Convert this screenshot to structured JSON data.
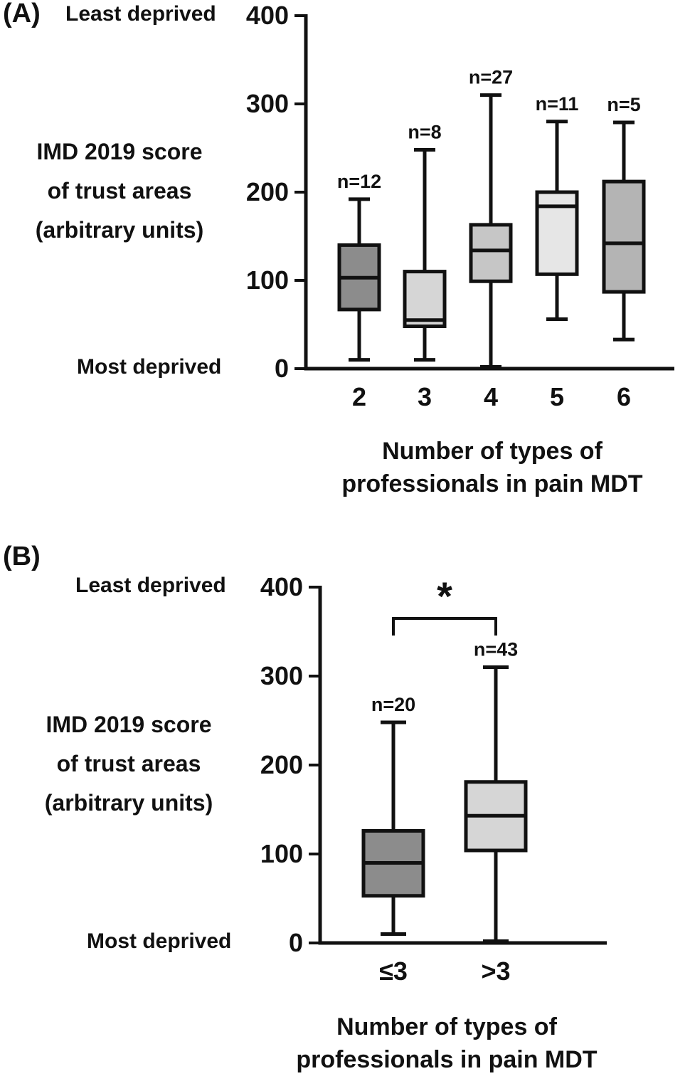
{
  "figure": {
    "background": "#ffffff",
    "text_color": "#111111",
    "axis_color": "#111111"
  },
  "chart_data": [
    {
      "type": "boxplot",
      "panel_label": "(A)",
      "least_label": "Least deprived",
      "most_label": "Most deprived",
      "ylabel": "IMD 2019 score of trust areas (arbitrary units)",
      "ylabel_lines": [
        "IMD 2019 score",
        "of trust areas",
        "(arbitrary units)"
      ],
      "xlabel": "Number of types of professionals in pain MDT",
      "xlabel_lines": [
        "Number of types of",
        "professionals in pain MDT"
      ],
      "ylim": [
        0,
        400
      ],
      "yticks": [
        0,
        100,
        200,
        300,
        400
      ],
      "categories": [
        "2",
        "3",
        "4",
        "5",
        "6"
      ],
      "boxes": [
        {
          "category": "2",
          "n": 12,
          "n_label": "n=12",
          "min": 10,
          "q1": 67,
          "median": 103,
          "q3": 140,
          "max": 192,
          "fill": "#8c8c8c"
        },
        {
          "category": "3",
          "n": 8,
          "n_label": "n=8",
          "min": 10,
          "q1": 48,
          "median": 55,
          "q3": 110,
          "max": 248,
          "fill": "#d6d6d6"
        },
        {
          "category": "4",
          "n": 27,
          "n_label": "n=27",
          "min": 2,
          "q1": 99,
          "median": 134,
          "q3": 163,
          "max": 310,
          "fill": "#c6c6c6"
        },
        {
          "category": "5",
          "n": 11,
          "n_label": "n=11",
          "min": 56,
          "q1": 107,
          "median": 184,
          "q3": 200,
          "max": 280,
          "fill": "#e6e6e6"
        },
        {
          "category": "6",
          "n": 5,
          "n_label": "n=5",
          "min": 33,
          "q1": 87,
          "median": 142,
          "q3": 212,
          "max": 279,
          "fill": "#b4b4b4"
        }
      ]
    },
    {
      "type": "boxplot",
      "panel_label": "(B)",
      "least_label": "Least deprived",
      "most_label": "Most deprived",
      "ylabel": "IMD 2019 score of trust areas (arbitrary units)",
      "ylabel_lines": [
        "IMD 2019 score",
        "of trust areas",
        "(arbitrary units)"
      ],
      "xlabel": "Number of types of professionals in pain MDT",
      "xlabel_lines": [
        "Number of types of",
        "professionals in pain MDT"
      ],
      "ylim": [
        0,
        400
      ],
      "yticks": [
        0,
        100,
        200,
        300,
        400
      ],
      "categories": [
        "≤3",
        ">3"
      ],
      "boxes": [
        {
          "category": "≤3",
          "n": 20,
          "n_label": "n=20",
          "min": 10,
          "q1": 53,
          "median": 90,
          "q3": 126,
          "max": 248,
          "fill": "#8c8c8c"
        },
        {
          "category": ">3",
          "n": 43,
          "n_label": "n=43",
          "min": 2,
          "q1": 104,
          "median": 143,
          "q3": 181,
          "max": 310,
          "fill": "#d6d6d6"
        }
      ],
      "significance": {
        "label": "*",
        "between": [
          "≤3",
          ">3"
        ]
      }
    }
  ]
}
